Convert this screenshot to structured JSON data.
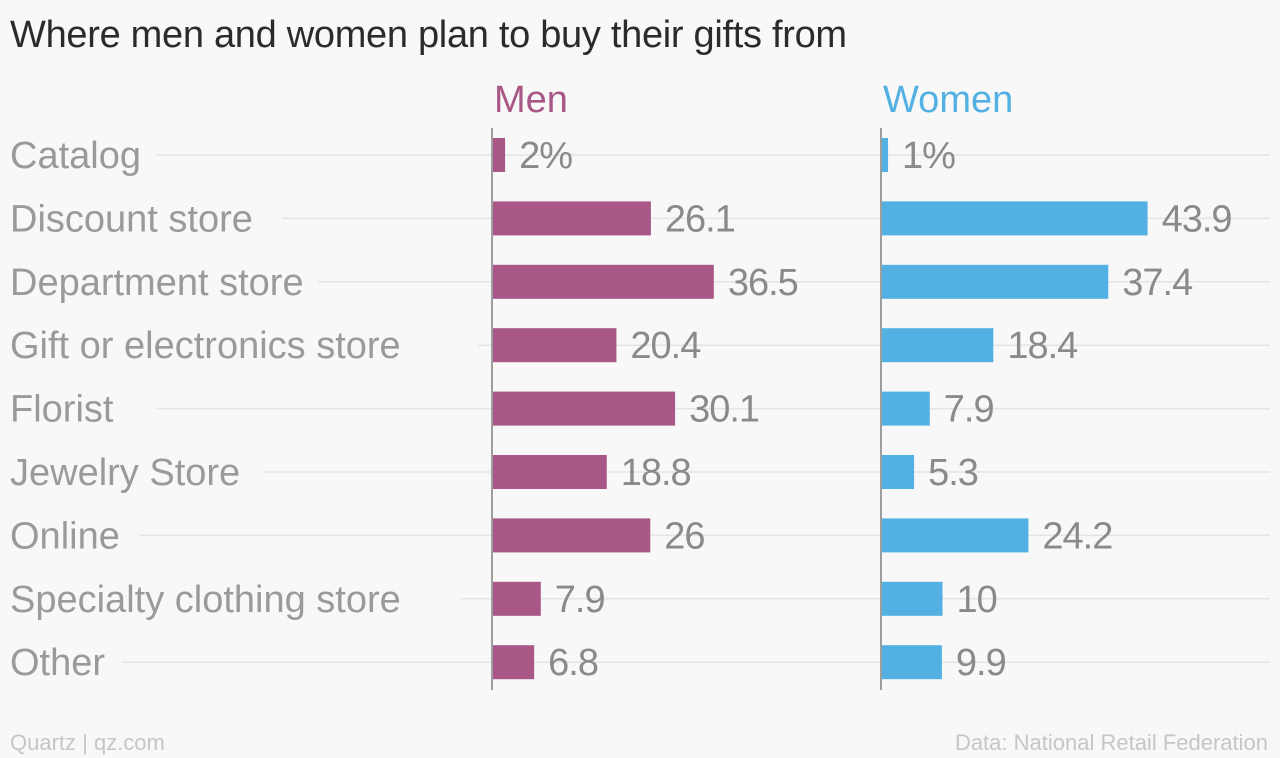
{
  "title": "Where men and women plan to buy their gifts from",
  "footer": {
    "credit": "Quartz | qz.com",
    "source": "Data: National Retail Federation"
  },
  "colors": {
    "men": "#a95787",
    "women": "#52b1e2",
    "category_text": "#9a9a9a",
    "value_text": "#8a8a8a",
    "gridline": "#e4e4e4",
    "axis": "#9e9e9e"
  },
  "chart_data": {
    "type": "bar",
    "orientation": "horizontal",
    "categories": [
      "Catalog",
      "Discount store",
      "Department store",
      "Gift or electronics store",
      "Florist",
      "Jewelry Store",
      "Online",
      "Specialty clothing store",
      "Other"
    ],
    "series": [
      {
        "name": "Men",
        "values": [
          2,
          26.1,
          36.5,
          20.4,
          30.1,
          18.8,
          26,
          7.9,
          6.8
        ],
        "labels": [
          "2%",
          "26.1",
          "36.5",
          "20.4",
          "30.1",
          "18.8",
          "26",
          "7.9",
          "6.8"
        ]
      },
      {
        "name": "Women",
        "values": [
          1,
          43.9,
          37.4,
          18.4,
          7.9,
          5.3,
          24.2,
          10,
          9.9
        ],
        "labels": [
          "1%",
          "43.9",
          "37.4",
          "18.4",
          "7.9",
          "5.3",
          "24.2",
          "10",
          "9.9"
        ]
      }
    ],
    "unit": "%",
    "title": "Where men and women plan to buy their gifts from",
    "xlabel": "",
    "ylabel": "",
    "grid": true,
    "legend": "panel headers"
  }
}
